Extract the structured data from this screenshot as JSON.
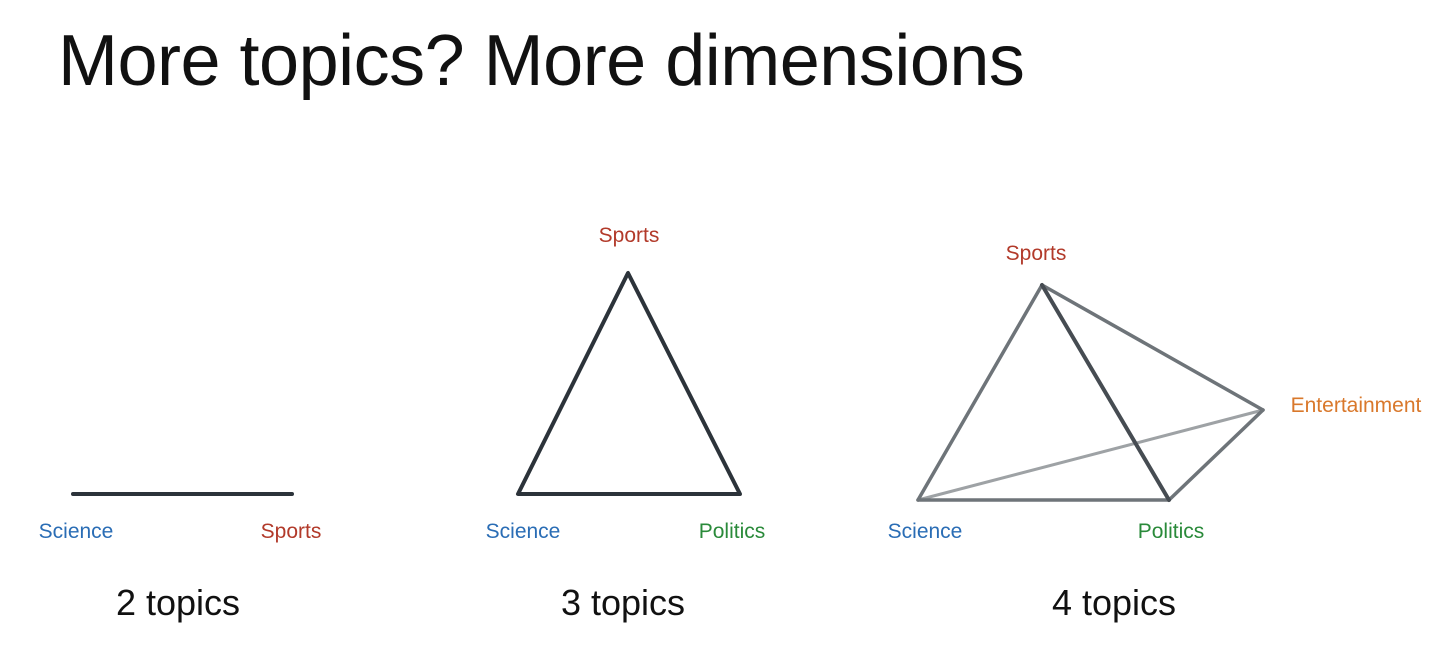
{
  "title": "More topics? More dimensions",
  "colors": {
    "science": "#2a6db5",
    "sports": "#b23a2a",
    "politics": "#2a8a3a",
    "entertainment": "#d9782b",
    "edge_dark": "#2c333a",
    "edge_gray": "#6e7479",
    "edge_light": "#9ea2a5"
  },
  "panels": [
    {
      "caption": "2 topics",
      "labels": {
        "science": "Science",
        "sports": "Sports"
      }
    },
    {
      "caption": "3 topics",
      "labels": {
        "sports": "Sports",
        "science": "Science",
        "politics": "Politics"
      }
    },
    {
      "caption": "4 topics",
      "labels": {
        "sports": "Sports",
        "entertainment": "Entertainment",
        "science": "Science",
        "politics": "Politics"
      }
    }
  ]
}
